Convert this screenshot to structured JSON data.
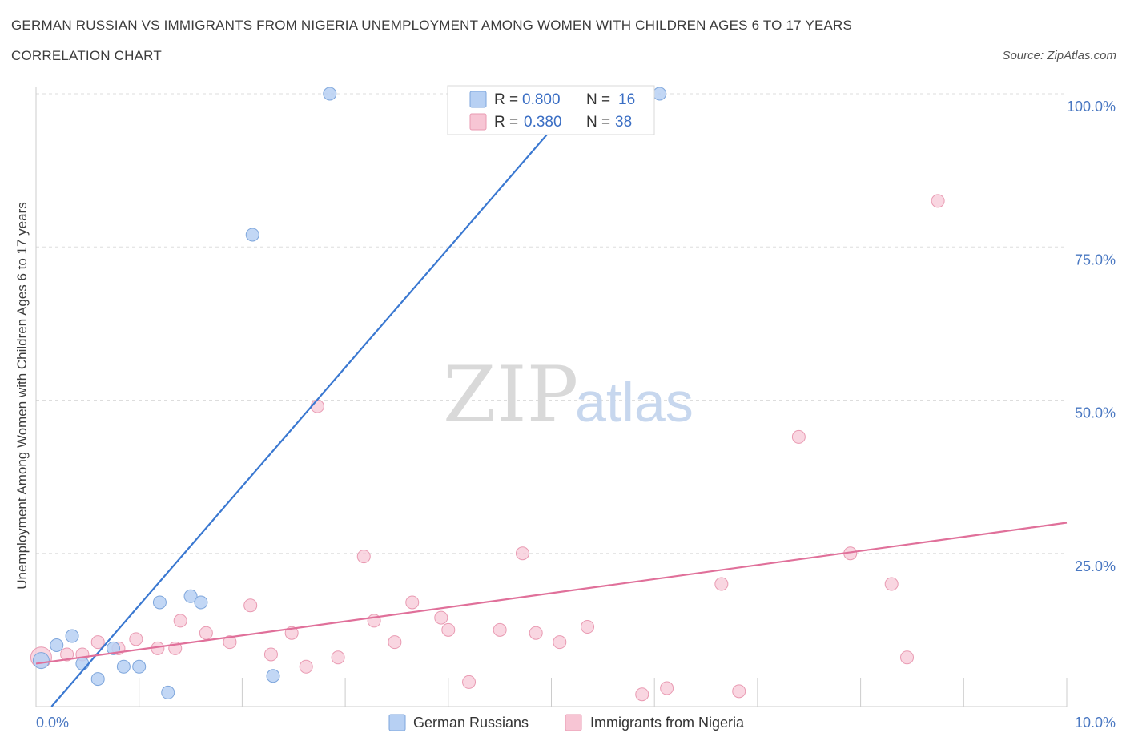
{
  "header": {
    "title": "GERMAN RUSSIAN VS IMMIGRANTS FROM NIGERIA UNEMPLOYMENT AMONG WOMEN WITH CHILDREN AGES 6 TO 17 YEARS",
    "subtitle": "CORRELATION CHART",
    "source": "Source: ZipAtlas.com"
  },
  "watermark": {
    "zip": "ZIP",
    "atlas": "atlas"
  },
  "legend": {
    "rows": [
      {
        "r_label": "R =",
        "r_value": "0.800",
        "n_label": "N =",
        "n_value": "16"
      },
      {
        "r_label": "R =",
        "r_value": "0.380",
        "n_label": "N =",
        "n_value": "38"
      }
    ]
  },
  "colors": {
    "blue_fill": "#b7d0f3",
    "blue_stroke": "#7ea6dc",
    "blue_line": "#3a78d1",
    "pink_fill": "#f7c5d4",
    "pink_stroke": "#e99ab2",
    "pink_line": "#e0709a",
    "grid": "#dddddd",
    "tick_label": "#4a78c2"
  },
  "chart_data": {
    "type": "scatter",
    "title": "GERMAN RUSSIAN VS IMMIGRANTS FROM NIGERIA UNEMPLOYMENT AMONG WOMEN WITH CHILDREN AGES 6 TO 17 YEARS",
    "subtitle": "CORRELATION CHART",
    "xlabel": "",
    "ylabel": "Unemployment Among Women with Children Ages 6 to 17 years",
    "xlim": [
      0,
      10
    ],
    "ylim": [
      0,
      100
    ],
    "x_tick_labels": [
      "0.0%",
      "10.0%"
    ],
    "y_tick_labels": [
      "25.0%",
      "50.0%",
      "75.0%",
      "100.0%"
    ],
    "y_ticks": [
      25,
      50,
      75,
      100
    ],
    "grid": true,
    "legend_placement": "top-center",
    "series": [
      {
        "name": "German Russians",
        "r": 0.8,
        "n": 16,
        "trend": [
          [
            0.15,
            0
          ],
          [
            5.3,
            100
          ]
        ],
        "points": [
          [
            0.05,
            7.5
          ],
          [
            0.2,
            10
          ],
          [
            0.35,
            11.5
          ],
          [
            0.45,
            7
          ],
          [
            0.6,
            4.5
          ],
          [
            0.75,
            9.5
          ],
          [
            0.85,
            6.5
          ],
          [
            1.0,
            6.5
          ],
          [
            1.2,
            17
          ],
          [
            1.28,
            2.3
          ],
          [
            1.5,
            18
          ],
          [
            1.6,
            17
          ],
          [
            2.1,
            77
          ],
          [
            2.3,
            5
          ],
          [
            2.85,
            100
          ],
          [
            6.05,
            100
          ]
        ]
      },
      {
        "name": "Immigrants from Nigeria",
        "r": 0.38,
        "n": 38,
        "trend": [
          [
            0,
            7
          ],
          [
            10,
            30
          ]
        ],
        "points": [
          [
            0.05,
            8
          ],
          [
            0.3,
            8.5
          ],
          [
            0.45,
            8.5
          ],
          [
            0.6,
            10.5
          ],
          [
            0.8,
            9.5
          ],
          [
            0.97,
            11
          ],
          [
            1.18,
            9.5
          ],
          [
            1.35,
            9.5
          ],
          [
            1.4,
            14
          ],
          [
            1.65,
            12
          ],
          [
            1.88,
            10.5
          ],
          [
            2.08,
            16.5
          ],
          [
            2.28,
            8.5
          ],
          [
            2.48,
            12
          ],
          [
            2.62,
            6.5
          ],
          [
            2.73,
            49
          ],
          [
            2.93,
            8
          ],
          [
            3.18,
            24.5
          ],
          [
            3.28,
            14
          ],
          [
            3.48,
            10.5
          ],
          [
            3.65,
            17
          ],
          [
            3.93,
            14.5
          ],
          [
            4.0,
            12.5
          ],
          [
            4.2,
            4
          ],
          [
            4.5,
            12.5
          ],
          [
            4.72,
            25
          ],
          [
            4.85,
            12
          ],
          [
            5.08,
            10.5
          ],
          [
            5.35,
            13
          ],
          [
            5.88,
            2
          ],
          [
            6.12,
            3
          ],
          [
            6.65,
            20
          ],
          [
            6.82,
            2.5
          ],
          [
            7.4,
            44
          ],
          [
            7.9,
            25
          ],
          [
            8.3,
            20
          ],
          [
            8.45,
            8
          ],
          [
            8.75,
            82.5
          ]
        ]
      }
    ]
  },
  "bottom_legend": {
    "items": [
      "German Russians",
      "Immigrants from Nigeria"
    ]
  }
}
